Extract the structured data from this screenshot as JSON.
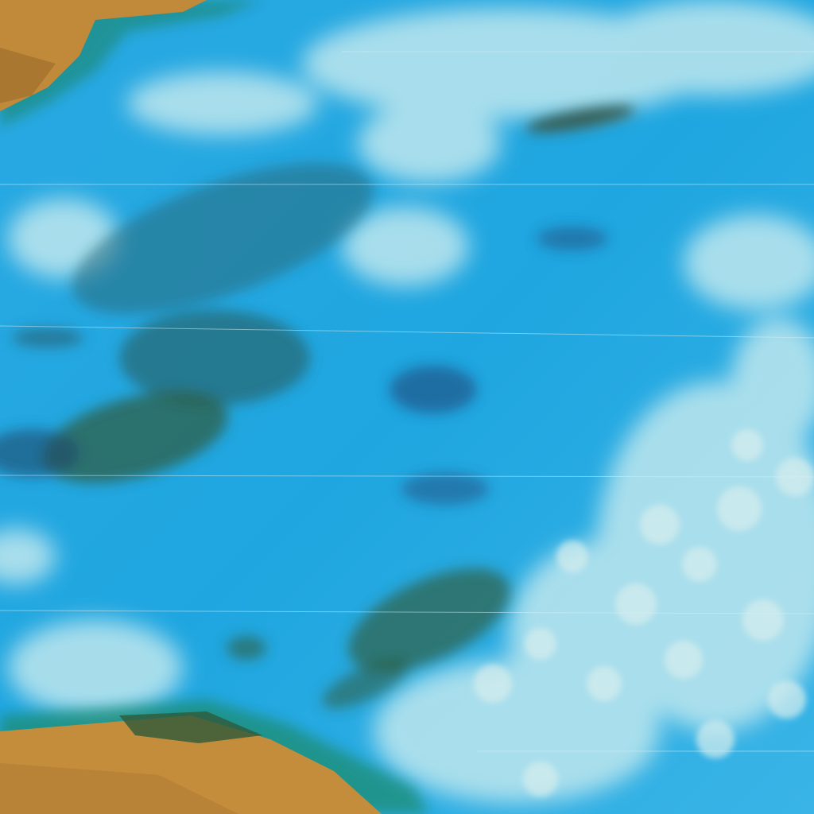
{
  "image": {
    "kind": "false-color satellite imagery",
    "colors": {
      "ocean": "#1fa7e0",
      "ocean_light": "#49c0ee",
      "cloud": "#b9e6ef",
      "cloud_bright": "#d8efef",
      "land": "#c08a3a",
      "land_dark": "#9a6a2a",
      "vegetation": "#2f5a3a",
      "storm": "#1d4a6a"
    }
  }
}
